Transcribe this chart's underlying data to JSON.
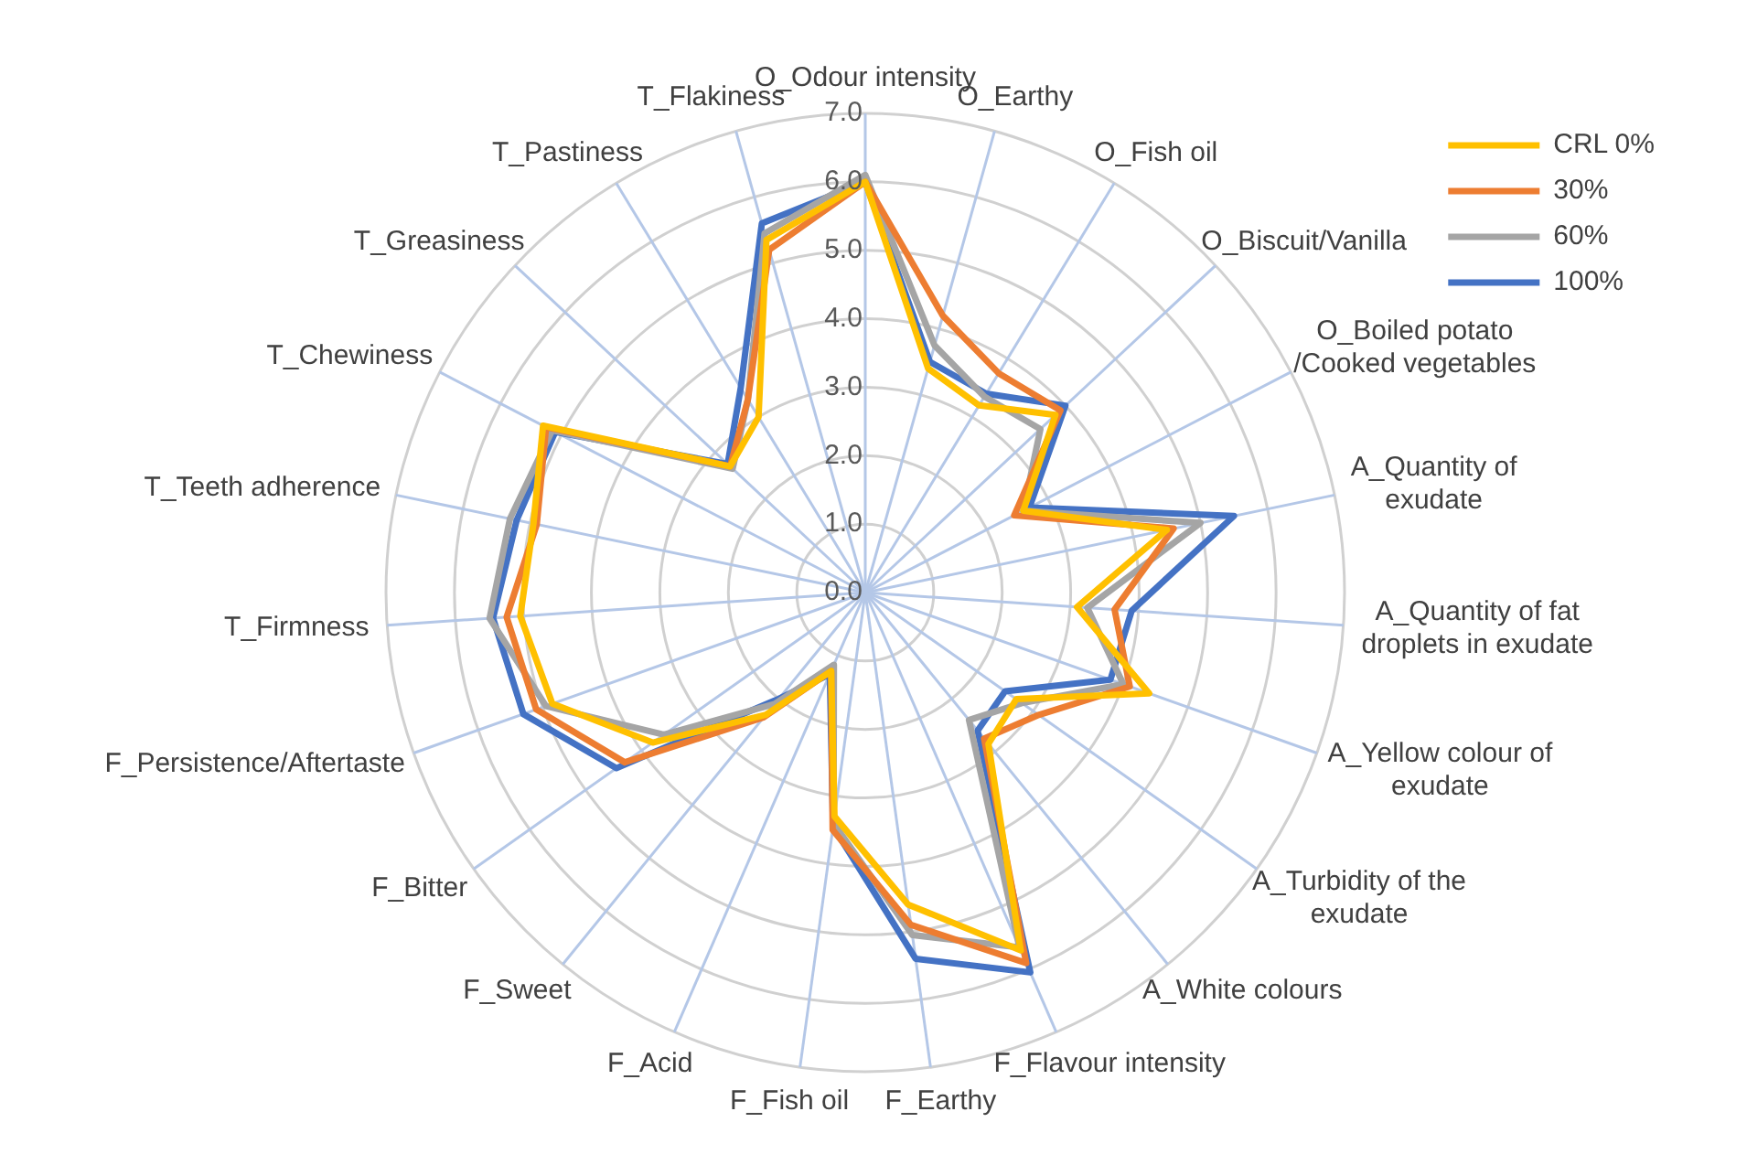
{
  "chart_data": {
    "type": "radar",
    "categories": [
      "O_Odour intensity",
      "O_Earthy",
      "O_Fish oil",
      "O_Biscuit/Vanilla",
      "O_Boiled potato /Cooked vegetables",
      "A_Quantity of exudate",
      "A_Quantity of fat droplets in exudate",
      "A_Yellow colour of exudate",
      "A_Turbidity of the exudate",
      "A_White colours",
      "F_Flavour intensity",
      "F_Earthy",
      "F_Fish oil",
      "F_Acid",
      "F_Sweet",
      "F_Bitter",
      "F_Persistence/Aftertaste",
      "T_Firmness",
      "T_Teeth adherence",
      "T_Chewiness",
      "T_Greasiness",
      "T_Pastiness",
      "T_Flakiness"
    ],
    "series": [
      {
        "name": "CRL 0%",
        "color": "#ffc000",
        "values": [
          6.0,
          3.4,
          3.2,
          3.8,
          2.6,
          4.5,
          3.1,
          4.4,
          2.7,
          2.85,
          5.7,
          4.6,
          3.3,
          1.25,
          2.3,
          3.8,
          4.85,
          5.05,
          4.95,
          5.3,
          2.7,
          3.0,
          5.35
        ]
      },
      {
        "name": "30%",
        "color": "#ed7d31",
        "values": [
          6.0,
          4.2,
          3.75,
          3.9,
          2.45,
          4.6,
          3.65,
          4.1,
          3.1,
          2.75,
          5.9,
          4.9,
          3.5,
          1.25,
          2.35,
          4.3,
          5.1,
          5.25,
          4.9,
          5.25,
          2.7,
          3.3,
          5.2
        ]
      },
      {
        "name": "60%",
        "color": "#a5a5a5",
        "values": [
          6.1,
          3.75,
          3.35,
          3.5,
          2.6,
          5.0,
          3.25,
          4.0,
          2.8,
          2.4,
          5.65,
          5.05,
          3.4,
          1.15,
          2.1,
          3.6,
          4.95,
          5.5,
          5.3,
          5.15,
          2.65,
          3.3,
          5.45
        ]
      },
      {
        "name": "100%",
        "color": "#4472c4",
        "values": [
          6.0,
          3.5,
          3.4,
          4.0,
          2.7,
          5.5,
          3.9,
          3.8,
          2.5,
          2.6,
          6.05,
          5.4,
          3.45,
          1.3,
          2.0,
          4.45,
          5.3,
          5.45,
          5.2,
          5.1,
          2.75,
          3.5,
          5.6
        ]
      }
    ],
    "ylim": [
      0,
      7
    ],
    "yticks": [
      {
        "value": 0,
        "label": "0.0"
      },
      {
        "value": 1,
        "label": "1.0"
      },
      {
        "value": 2,
        "label": "2.0"
      },
      {
        "value": 3,
        "label": "3.0"
      },
      {
        "value": 4,
        "label": "4.0"
      },
      {
        "value": 5,
        "label": "5.0"
      },
      {
        "value": 6,
        "label": "6.0"
      },
      {
        "value": 7,
        "label": "7.0"
      }
    ],
    "grid": true,
    "legend": "top right",
    "marker": "none"
  }
}
